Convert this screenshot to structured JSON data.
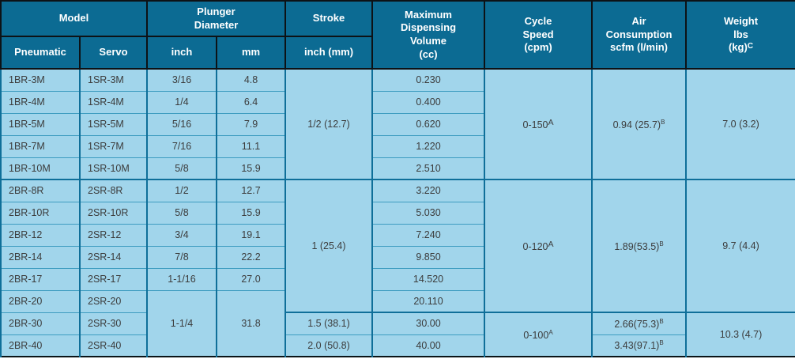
{
  "table": {
    "header_rows": [
      [
        {
          "name": "model",
          "label": "Model",
          "colspan": 2
        },
        {
          "name": "plunger-diameter",
          "label": "Plunger\nDiameter",
          "colspan": 2
        },
        {
          "name": "stroke",
          "label": "Stroke"
        },
        {
          "name": "max-dispensing-volume",
          "label": "Maximum\nDispensing\nVolume\n(cc)",
          "rowspan": 2
        },
        {
          "name": "cycle-speed",
          "label": "Cycle\nSpeed\n(cpm)",
          "rowspan": 2
        },
        {
          "name": "air-consumption",
          "label": "Air\nConsumption\nscfm (l/min)",
          "rowspan": 2
        },
        {
          "name": "weight",
          "label": "Weight\nlbs\n(kg)",
          "sup": "C",
          "rowspan": 2
        }
      ],
      [
        {
          "name": "pneumatic",
          "label": "Pneumatic"
        },
        {
          "name": "servo",
          "label": "Servo"
        },
        {
          "name": "inch",
          "label": "inch"
        },
        {
          "name": "mm",
          "label": "mm"
        },
        {
          "name": "stroke-unit",
          "label": "inch (mm)"
        }
      ]
    ],
    "rows": [
      [
        {
          "c": "pneumatic",
          "t": "1BR-3M"
        },
        {
          "c": "servo",
          "t": "1SR-3M"
        },
        {
          "c": "inch",
          "t": "3/16"
        },
        {
          "c": "mm",
          "t": "4.8"
        },
        {
          "c": "stroke",
          "t": "1/2 (12.7)",
          "rs": 5
        },
        {
          "c": "volume",
          "t": "0.230"
        },
        {
          "c": "cycle",
          "t": "0-150",
          "sup": "A",
          "supLarge": true,
          "rs": 5
        },
        {
          "c": "air",
          "t": "0.94 (25.7)",
          "sup": "B",
          "rs": 5
        },
        {
          "c": "weight",
          "t": "7.0 (3.2)",
          "rs": 5
        }
      ],
      [
        {
          "c": "pneumatic",
          "t": "1BR-4M"
        },
        {
          "c": "servo",
          "t": "1SR-4M"
        },
        {
          "c": "inch",
          "t": "1/4"
        },
        {
          "c": "mm",
          "t": "6.4"
        },
        {
          "c": "volume",
          "t": "0.400"
        }
      ],
      [
        {
          "c": "pneumatic",
          "t": "1BR-5M"
        },
        {
          "c": "servo",
          "t": "1SR-5M"
        },
        {
          "c": "inch",
          "t": "5/16"
        },
        {
          "c": "mm",
          "t": "7.9"
        },
        {
          "c": "volume",
          "t": "0.620"
        }
      ],
      [
        {
          "c": "pneumatic",
          "t": "1BR-7M"
        },
        {
          "c": "servo",
          "t": "1SR-7M"
        },
        {
          "c": "inch",
          "t": "7/16"
        },
        {
          "c": "mm",
          "t": "11.1"
        },
        {
          "c": "volume",
          "t": "1.220"
        }
      ],
      [
        {
          "c": "pneumatic",
          "t": "1BR-10M"
        },
        {
          "c": "servo",
          "t": "1SR-10M"
        },
        {
          "c": "inch",
          "t": "5/8"
        },
        {
          "c": "mm",
          "t": "15.9"
        },
        {
          "c": "volume",
          "t": "2.510"
        }
      ],
      [
        {
          "c": "pneumatic",
          "t": "2BR-8R",
          "gt": true
        },
        {
          "c": "servo",
          "t": "2SR-8R",
          "gt": true
        },
        {
          "c": "inch",
          "t": "1/2",
          "gt": true
        },
        {
          "c": "mm",
          "t": "12.7",
          "gt": true
        },
        {
          "c": "stroke",
          "t": "1 (25.4)",
          "rs": 6,
          "gt": true
        },
        {
          "c": "volume",
          "t": "3.220",
          "gt": true
        },
        {
          "c": "cycle",
          "t": "0-120",
          "sup": "A",
          "supLarge": true,
          "rs": 6,
          "gt": true
        },
        {
          "c": "air",
          "t": "1.89(53.5)",
          "sup": "B",
          "rs": 6,
          "gt": true
        },
        {
          "c": "weight",
          "t": "9.7 (4.4)",
          "rs": 6,
          "gt": true
        }
      ],
      [
        {
          "c": "pneumatic",
          "t": "2BR-10R"
        },
        {
          "c": "servo",
          "t": "2SR-10R"
        },
        {
          "c": "inch",
          "t": "5/8"
        },
        {
          "c": "mm",
          "t": "15.9"
        },
        {
          "c": "volume",
          "t": "5.030"
        }
      ],
      [
        {
          "c": "pneumatic",
          "t": "2BR-12"
        },
        {
          "c": "servo",
          "t": "2SR-12"
        },
        {
          "c": "inch",
          "t": "3/4"
        },
        {
          "c": "mm",
          "t": "19.1"
        },
        {
          "c": "volume",
          "t": "7.240"
        }
      ],
      [
        {
          "c": "pneumatic",
          "t": "2BR-14"
        },
        {
          "c": "servo",
          "t": "2SR-14"
        },
        {
          "c": "inch",
          "t": "7/8"
        },
        {
          "c": "mm",
          "t": "22.2"
        },
        {
          "c": "volume",
          "t": "9.850"
        }
      ],
      [
        {
          "c": "pneumatic",
          "t": "2BR-17"
        },
        {
          "c": "servo",
          "t": "2SR-17"
        },
        {
          "c": "inch",
          "t": "1-1/16"
        },
        {
          "c": "mm",
          "t": "27.0"
        },
        {
          "c": "volume",
          "t": "14.520"
        }
      ],
      [
        {
          "c": "pneumatic",
          "t": "2BR-20"
        },
        {
          "c": "servo",
          "t": "2SR-20"
        },
        {
          "c": "inch",
          "t": "1-1/4",
          "rs": 3
        },
        {
          "c": "mm",
          "t": "31.8",
          "rs": 3
        },
        {
          "c": "volume",
          "t": "20.110"
        }
      ],
      [
        {
          "c": "pneumatic",
          "t": "2BR-30"
        },
        {
          "c": "servo",
          "t": "2SR-30"
        },
        {
          "c": "stroke",
          "t": "1.5 (38.1)",
          "gt": true
        },
        {
          "c": "volume",
          "t": "30.00",
          "gt": true
        },
        {
          "c": "cycle",
          "t": "0-100",
          "sup": "A",
          "rs": 2,
          "gt": true
        },
        {
          "c": "air",
          "t": "2.66(75.3)",
          "sup": "B",
          "gt": true
        },
        {
          "c": "weight",
          "t": "10.3 (4.7)",
          "rs": 2,
          "gt": true
        }
      ],
      [
        {
          "c": "pneumatic",
          "t": "2BR-40"
        },
        {
          "c": "servo",
          "t": "2SR-40"
        },
        {
          "c": "stroke",
          "t": "2.0 (50.8)"
        },
        {
          "c": "volume",
          "t": "40.00"
        },
        {
          "c": "air",
          "t": "3.43(97.1)",
          "sup": "B"
        }
      ]
    ],
    "colors": {
      "header_bg": "#0c6b93",
      "body_bg": "#a1d5eb",
      "thin_line": "#3d9cc0",
      "thick_line": "#0f6f99",
      "header_border": "#0d1216",
      "header_text": "#ffffff",
      "body_text": "#3c3c3c"
    }
  }
}
